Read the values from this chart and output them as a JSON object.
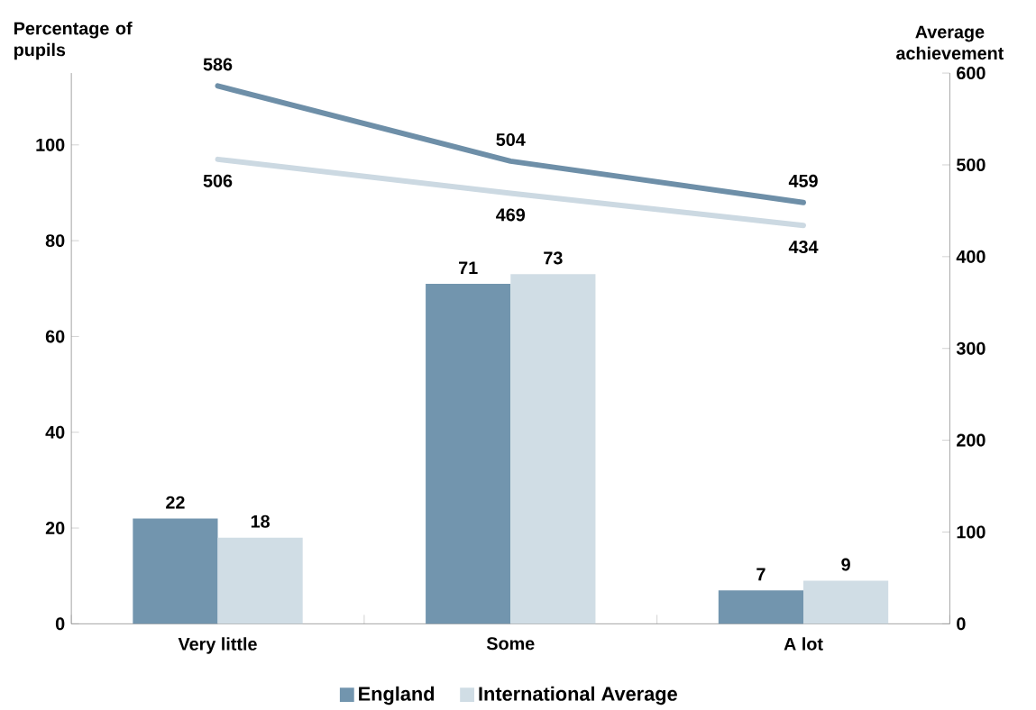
{
  "chart_data": {
    "type": "bar",
    "ylabel": "Percentage of pupils",
    "y2label": "Average achievement",
    "categories": [
      "Very little",
      "Some",
      "A lot"
    ],
    "series": [
      {
        "name": "England",
        "color": "#7295ae",
        "values": [
          22,
          71,
          7
        ]
      },
      {
        "name": "International Average",
        "color": "#d0dde5",
        "values": [
          18,
          73,
          9
        ]
      },
      {
        "type": "line",
        "axis": "y2",
        "color": "#6e8fa8",
        "values": [
          586,
          504,
          459
        ]
      },
      {
        "type": "line",
        "axis": "y2",
        "color": "#ccd9e2",
        "values": [
          506,
          469,
          434
        ]
      }
    ],
    "ylim": [
      0,
      115
    ],
    "yticks": [
      0,
      20,
      40,
      60,
      80,
      100
    ],
    "y2lim": [
      0,
      600
    ],
    "y2ticks": [
      0,
      100,
      200,
      300,
      400,
      500,
      600
    ],
    "data_labels": true,
    "legend": "bottom"
  }
}
